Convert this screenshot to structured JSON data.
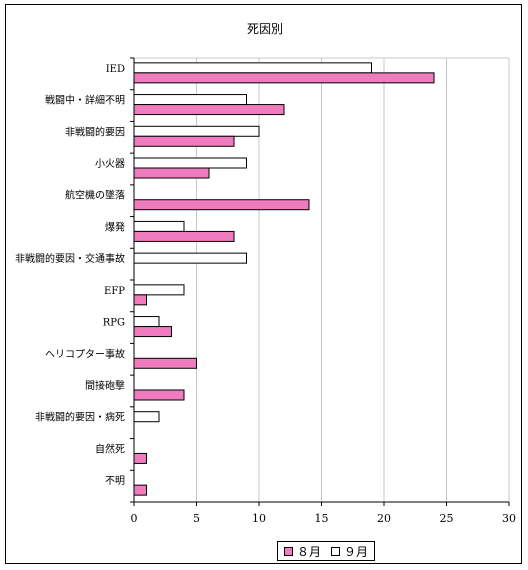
{
  "chart_data": {
    "type": "bar",
    "orientation": "horizontal",
    "title": "死因別",
    "categories": [
      "IED",
      "戦闘中・詳細不明",
      "非戦闘的要因",
      "小火器",
      "航空機の墜落",
      "爆発",
      "非戦闘的要因・交通事故",
      "EFP",
      "RPG",
      "ヘリコプター事故",
      "間接砲撃",
      "非戦闘的要因・病死",
      "自然死",
      "不明"
    ],
    "series": [
      {
        "name": "８月",
        "color": "#f07cc0",
        "values": [
          24,
          12,
          8,
          6,
          14,
          8,
          0,
          1,
          3,
          5,
          4,
          0,
          1,
          1
        ]
      },
      {
        "name": "９月",
        "color": "#ffffff",
        "values": [
          19,
          9,
          10,
          9,
          0,
          4,
          9,
          4,
          2,
          0,
          0,
          2,
          0,
          0
        ]
      }
    ],
    "xlim": [
      0,
      30
    ],
    "xticks": [
      "0",
      "5",
      "10",
      "15",
      "20",
      "25",
      "30"
    ],
    "grid": true,
    "legend": "bottom"
  }
}
